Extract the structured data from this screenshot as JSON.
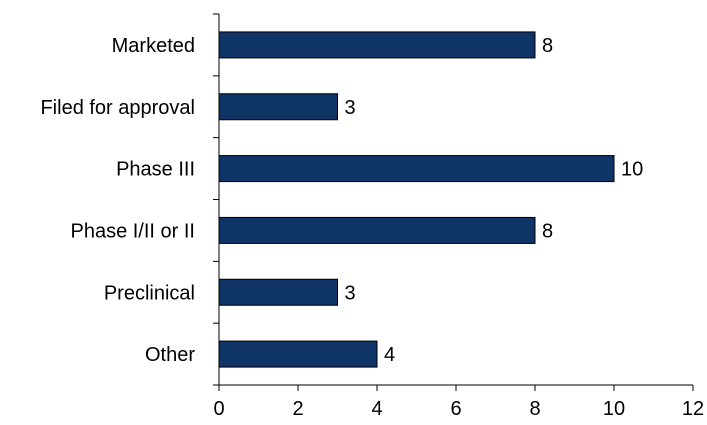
{
  "chart_data": {
    "type": "bar",
    "orientation": "horizontal",
    "title": "",
    "xlabel": "",
    "ylabel": "",
    "categories": [
      "Marketed",
      "Filed for approval",
      "Phase III",
      "Phase I/II or II",
      "Preclinical",
      "Other"
    ],
    "values": [
      8,
      3,
      10,
      8,
      3,
      4
    ],
    "xlim": [
      0,
      12
    ],
    "x_ticks": [
      0,
      2,
      4,
      6,
      8,
      10,
      12
    ],
    "grid": false,
    "legend": "none",
    "bar_color": "#0f3466",
    "data_labels": true
  }
}
